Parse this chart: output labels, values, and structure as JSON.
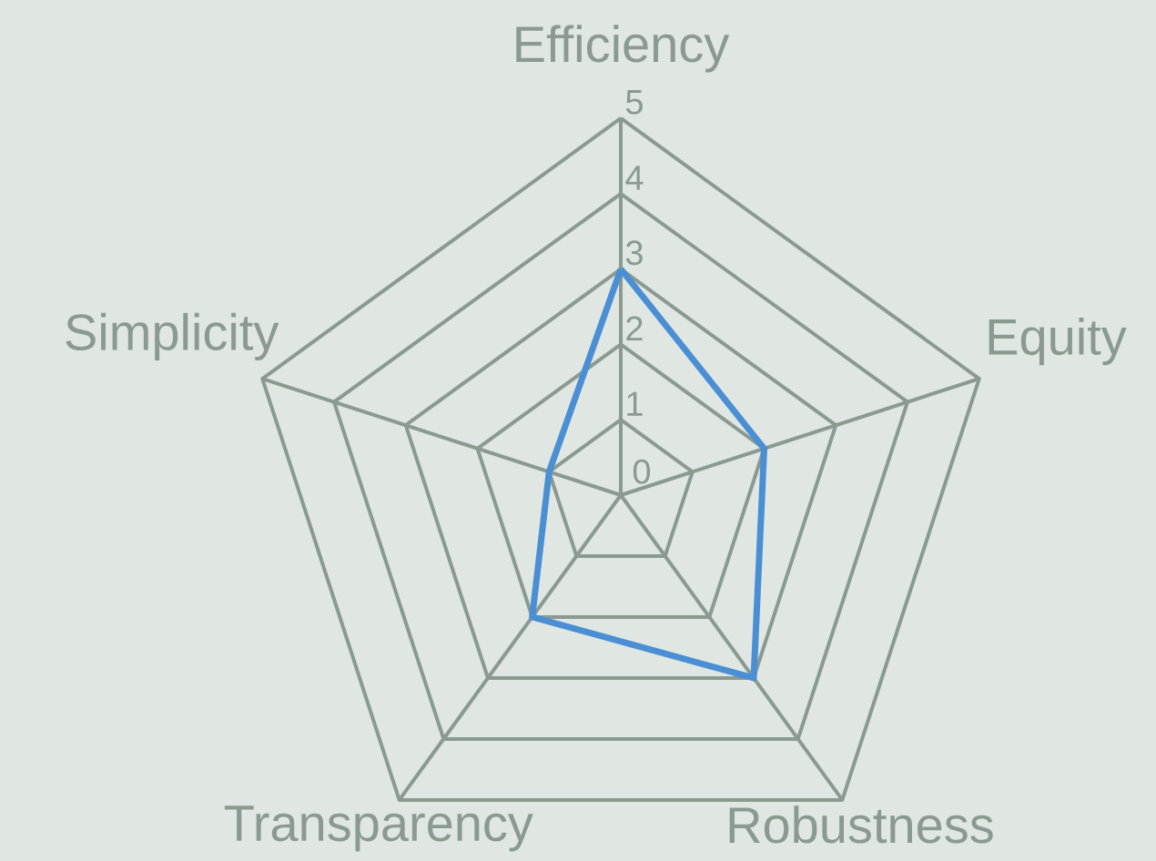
{
  "chart_data": {
    "type": "radar",
    "categories": [
      "Efficiency",
      "Equity",
      "Robustness",
      "Transparency",
      "Simplicity"
    ],
    "series": [
      {
        "color": "#4a8fd4",
        "values": [
          3,
          2,
          3,
          2,
          1
        ]
      }
    ],
    "ylim": [
      0,
      5
    ],
    "yticks": [
      0,
      1,
      2,
      3,
      4,
      5
    ],
    "grid": true
  }
}
